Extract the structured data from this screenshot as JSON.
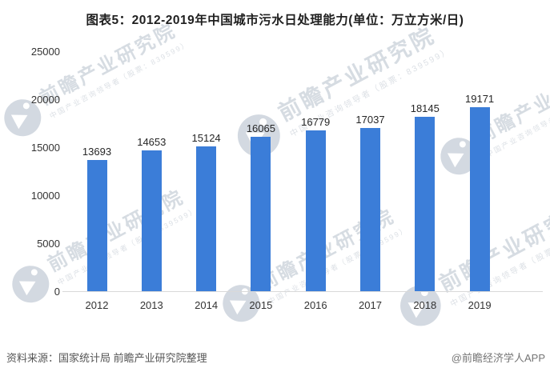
{
  "chart_data": {
    "type": "bar",
    "title": "图表5：2012-2019年中国城市污水日处理能力(单位：万立方米/日)",
    "categories": [
      "2012",
      "2013",
      "2014",
      "2015",
      "2016",
      "2017",
      "2018",
      "2019"
    ],
    "values": [
      13693,
      14653,
      15124,
      16065,
      16779,
      17037,
      18145,
      19171
    ],
    "xlabel": "",
    "ylabel": "",
    "ylim": [
      0,
      25000
    ],
    "yticks": [
      0,
      5000,
      10000,
      15000,
      20000,
      25000
    ],
    "grid": false,
    "legend": "none",
    "value_labels": true
  },
  "footer": {
    "source": "资料来源：国家统计局 前瞻产业研究院整理",
    "credit": "@前瞻经济学人APP"
  },
  "watermark": {
    "brand": "前瞻产业研究院",
    "tagline": "中国产业咨询领导者（股票：839599）"
  },
  "colors": {
    "bar": "#3B7DD8",
    "axis_line": "#d9d9d9",
    "title_text": "#1f1f1f",
    "label_text": "#333333",
    "source_text": "#555555",
    "credit_text": "#757575",
    "watermark": "#d0d6de"
  }
}
